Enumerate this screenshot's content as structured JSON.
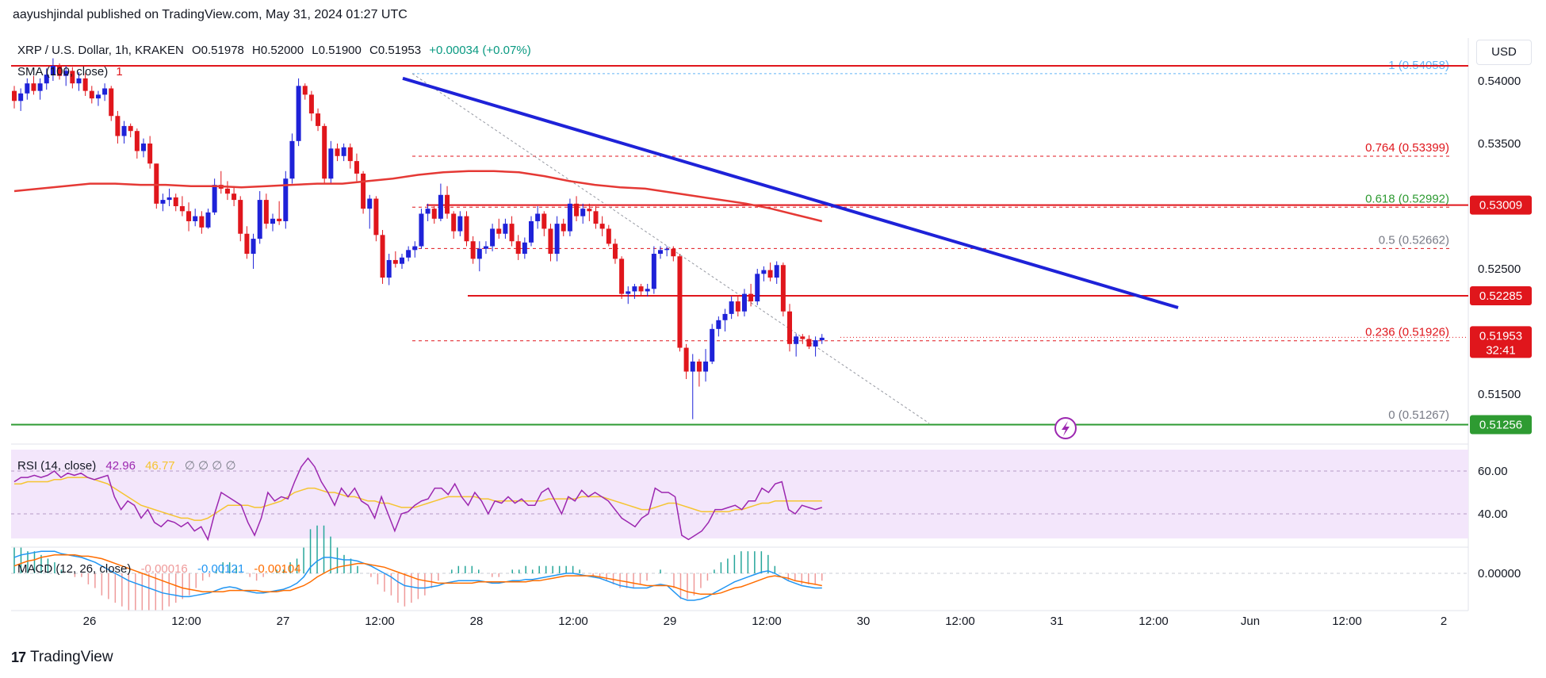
{
  "publisher": "aayushjindal published on TradingView.com, May 31, 2024 01:27 UTC",
  "brand": "TradingView",
  "currency": "USD",
  "header": {
    "symbol": "XRP / U.S. Dollar, 1h, KRAKEN",
    "open": "O0.51978",
    "high": "H0.52000",
    "low": "L0.51900",
    "close": "C0.51953",
    "change": "+0.00034 (+0.07%)",
    "sma_label": "SMA (100, close)",
    "sma_value": "1"
  },
  "colors": {
    "up": "#1e22d8",
    "down": "#e0161c",
    "sma": "#e53935",
    "trendline": "#1e22d8",
    "resistance": "#e0161c",
    "support": "#2e9b32",
    "rsi": "#9c27b0",
    "rsi_ma": "#f5c431",
    "macd": "#2196f3",
    "signal": "#ff6d00"
  },
  "price_axis": {
    "ticks": [
      "0.54000",
      "0.53500",
      "0.52500",
      "0.51500"
    ],
    "last_price": "0.51953",
    "countdown": "32:41",
    "level_labels": [
      "0.53009",
      "0.52285",
      "0.51256"
    ]
  },
  "fib": [
    {
      "ratio": "1",
      "value": "(0.54058)",
      "price": 0.54058
    },
    {
      "ratio": "0.764",
      "value": "(0.53399)",
      "price": 0.53399
    },
    {
      "ratio": "0.618",
      "value": "(0.52992)",
      "price": 0.52992
    },
    {
      "ratio": "0.5",
      "value": "(0.52662)",
      "price": 0.52662
    },
    {
      "ratio": "0.236",
      "value": "(0.51926)",
      "price": 0.51926
    },
    {
      "ratio": "0",
      "value": "(0.51267)",
      "price": 0.51267
    }
  ],
  "levels": {
    "resistance_top": 0.5412,
    "resistance_mid": 0.53009,
    "resistance_low": 0.52285,
    "support": 0.51256
  },
  "trendline": {
    "from": [
      "May 27 16:00",
      0.5402
    ],
    "to": [
      "May 31 06:00",
      0.5219
    ]
  },
  "x_axis": {
    "labels": [
      "26",
      "12:00",
      "27",
      "12:00",
      "28",
      "12:00",
      "29",
      "12:00",
      "30",
      "12:00",
      "31",
      "12:00",
      "Jun",
      "12:00",
      "2"
    ]
  },
  "rsi": {
    "label": "RSI (14, close)",
    "value1": "42.96",
    "value2": "46.77",
    "extra": "∅ ∅ ∅ ∅",
    "ticks": [
      "60.00",
      "40.00"
    ]
  },
  "macd": {
    "label": "MACD (12, 26, close)",
    "hist": "-0.00016",
    "macd": "-0.00121",
    "signal": "-0.00104",
    "ticks": [
      "0.00000"
    ]
  },
  "chart_data": {
    "type": "candlestick",
    "title": "XRP / U.S. Dollar, 1h, KRAKEN",
    "ylim": [
      0.5105,
      0.5425
    ],
    "candles": [
      [
        0.5392,
        0.5396,
        0.5378,
        0.5384
      ],
      [
        0.5384,
        0.5394,
        0.5376,
        0.539
      ],
      [
        0.539,
        0.5402,
        0.5385,
        0.5398
      ],
      [
        0.5398,
        0.5404,
        0.5389,
        0.5392
      ],
      [
        0.5392,
        0.5402,
        0.5385,
        0.5398
      ],
      [
        0.5398,
        0.541,
        0.5393,
        0.5405
      ],
      [
        0.5405,
        0.5418,
        0.54,
        0.5412
      ],
      [
        0.5412,
        0.5414,
        0.5401,
        0.5404
      ],
      [
        0.5404,
        0.5412,
        0.5396,
        0.5408
      ],
      [
        0.5408,
        0.5411,
        0.5394,
        0.5398
      ],
      [
        0.5398,
        0.5407,
        0.5392,
        0.5402
      ],
      [
        0.5402,
        0.5406,
        0.5388,
        0.5392
      ],
      [
        0.5392,
        0.5396,
        0.5382,
        0.5386
      ],
      [
        0.5386,
        0.5392,
        0.538,
        0.5389
      ],
      [
        0.5389,
        0.5398,
        0.5384,
        0.5394
      ],
      [
        0.5394,
        0.5396,
        0.5368,
        0.5372
      ],
      [
        0.5372,
        0.5376,
        0.535,
        0.5356
      ],
      [
        0.5356,
        0.5368,
        0.535,
        0.5364
      ],
      [
        0.5364,
        0.5366,
        0.5355,
        0.536
      ],
      [
        0.536,
        0.5362,
        0.5338,
        0.5344
      ],
      [
        0.5344,
        0.5354,
        0.5339,
        0.535
      ],
      [
        0.535,
        0.5356,
        0.533,
        0.5334
      ],
      [
        0.5334,
        0.5334,
        0.5298,
        0.5302
      ],
      [
        0.5302,
        0.531,
        0.5296,
        0.5305
      ],
      [
        0.5305,
        0.5314,
        0.53,
        0.5307
      ],
      [
        0.5307,
        0.531,
        0.5296,
        0.53
      ],
      [
        0.53,
        0.5308,
        0.5292,
        0.5296
      ],
      [
        0.5296,
        0.5303,
        0.528,
        0.5288
      ],
      [
        0.5288,
        0.5298,
        0.5284,
        0.5292
      ],
      [
        0.5292,
        0.5296,
        0.5278,
        0.5283
      ],
      [
        0.5283,
        0.5298,
        0.5282,
        0.5295
      ],
      [
        0.5295,
        0.5322,
        0.5293,
        0.5317
      ],
      [
        0.5317,
        0.5328,
        0.531,
        0.5314
      ],
      [
        0.5314,
        0.532,
        0.5305,
        0.531
      ],
      [
        0.531,
        0.5316,
        0.53,
        0.5305
      ],
      [
        0.5305,
        0.5308,
        0.5272,
        0.5278
      ],
      [
        0.5278,
        0.5284,
        0.5258,
        0.5262
      ],
      [
        0.5262,
        0.5278,
        0.525,
        0.5274
      ],
      [
        0.5274,
        0.5312,
        0.527,
        0.5305
      ],
      [
        0.5305,
        0.531,
        0.5282,
        0.5286
      ],
      [
        0.5286,
        0.5294,
        0.528,
        0.529
      ],
      [
        0.529,
        0.5304,
        0.5285,
        0.5288
      ],
      [
        0.5288,
        0.5328,
        0.5282,
        0.5322
      ],
      [
        0.5322,
        0.5358,
        0.5318,
        0.5352
      ],
      [
        0.5352,
        0.5402,
        0.5348,
        0.5396
      ],
      [
        0.5396,
        0.5398,
        0.5385,
        0.5389
      ],
      [
        0.5389,
        0.5392,
        0.5368,
        0.5374
      ],
      [
        0.5374,
        0.5378,
        0.536,
        0.5364
      ],
      [
        0.5364,
        0.5366,
        0.5318,
        0.5322
      ],
      [
        0.5322,
        0.5352,
        0.5318,
        0.5346
      ],
      [
        0.5346,
        0.535,
        0.5336,
        0.534
      ],
      [
        0.534,
        0.535,
        0.5336,
        0.5347
      ],
      [
        0.5347,
        0.535,
        0.533,
        0.5336
      ],
      [
        0.5336,
        0.5342,
        0.532,
        0.5326
      ],
      [
        0.5326,
        0.5328,
        0.5294,
        0.5298
      ],
      [
        0.5298,
        0.5309,
        0.5282,
        0.5306
      ],
      [
        0.5306,
        0.5308,
        0.5272,
        0.5277
      ],
      [
        0.5277,
        0.5281,
        0.5238,
        0.5243
      ],
      [
        0.5243,
        0.5262,
        0.5237,
        0.5257
      ],
      [
        0.5257,
        0.5264,
        0.5251,
        0.5254
      ],
      [
        0.5254,
        0.5262,
        0.525,
        0.5259
      ],
      [
        0.5259,
        0.5268,
        0.5256,
        0.5265
      ],
      [
        0.5265,
        0.5272,
        0.5259,
        0.5268
      ],
      [
        0.5268,
        0.5298,
        0.5266,
        0.5294
      ],
      [
        0.5294,
        0.5302,
        0.5288,
        0.5298
      ],
      [
        0.5298,
        0.53,
        0.5286,
        0.529
      ],
      [
        0.529,
        0.5318,
        0.5288,
        0.5309
      ],
      [
        0.5309,
        0.5316,
        0.529,
        0.5294
      ],
      [
        0.5294,
        0.5296,
        0.5274,
        0.528
      ],
      [
        0.528,
        0.5296,
        0.5276,
        0.5292
      ],
      [
        0.5292,
        0.5296,
        0.5268,
        0.5272
      ],
      [
        0.5272,
        0.5276,
        0.5254,
        0.5258
      ],
      [
        0.5258,
        0.5272,
        0.5248,
        0.5266
      ],
      [
        0.5266,
        0.5272,
        0.5262,
        0.5268
      ],
      [
        0.5268,
        0.5286,
        0.5264,
        0.5282
      ],
      [
        0.5282,
        0.529,
        0.5274,
        0.5278
      ],
      [
        0.5278,
        0.529,
        0.5274,
        0.5286
      ],
      [
        0.5286,
        0.5292,
        0.5268,
        0.5272
      ],
      [
        0.5272,
        0.5277,
        0.5257,
        0.5262
      ],
      [
        0.5262,
        0.5275,
        0.5258,
        0.5271
      ],
      [
        0.5271,
        0.5292,
        0.5268,
        0.5288
      ],
      [
        0.5288,
        0.53,
        0.5282,
        0.5294
      ],
      [
        0.5294,
        0.5296,
        0.5276,
        0.5282
      ],
      [
        0.5282,
        0.5286,
        0.5256,
        0.5262
      ],
      [
        0.5262,
        0.5292,
        0.5256,
        0.5286
      ],
      [
        0.5286,
        0.529,
        0.5276,
        0.528
      ],
      [
        0.528,
        0.5306,
        0.5276,
        0.5302
      ],
      [
        0.5302,
        0.5308,
        0.5288,
        0.5292
      ],
      [
        0.5292,
        0.5302,
        0.5286,
        0.5298
      ],
      [
        0.5298,
        0.5302,
        0.5288,
        0.5296
      ],
      [
        0.5296,
        0.53,
        0.5282,
        0.5286
      ],
      [
        0.5286,
        0.5292,
        0.5276,
        0.5282
      ],
      [
        0.5282,
        0.5285,
        0.5268,
        0.527
      ],
      [
        0.527,
        0.5274,
        0.5254,
        0.5258
      ],
      [
        0.5258,
        0.526,
        0.5226,
        0.523
      ],
      [
        0.523,
        0.5236,
        0.5222,
        0.5232
      ],
      [
        0.5232,
        0.5238,
        0.5226,
        0.5236
      ],
      [
        0.5236,
        0.5238,
        0.5229,
        0.5232
      ],
      [
        0.5232,
        0.5238,
        0.5228,
        0.5234
      ],
      [
        0.5234,
        0.5268,
        0.523,
        0.5262
      ],
      [
        0.5262,
        0.5268,
        0.5258,
        0.5265
      ],
      [
        0.5265,
        0.5268,
        0.526,
        0.5266
      ],
      [
        0.5266,
        0.5268,
        0.5256,
        0.526
      ],
      [
        0.526,
        0.5262,
        0.5184,
        0.5187
      ],
      [
        0.5187,
        0.519,
        0.5162,
        0.5168
      ],
      [
        0.5168,
        0.5182,
        0.513,
        0.5176
      ],
      [
        0.5176,
        0.5178,
        0.5156,
        0.5168
      ],
      [
        0.5168,
        0.5186,
        0.516,
        0.5176
      ],
      [
        0.5176,
        0.5206,
        0.5174,
        0.5202
      ],
      [
        0.5202,
        0.5212,
        0.5196,
        0.5209
      ],
      [
        0.5209,
        0.5218,
        0.52,
        0.5214
      ],
      [
        0.5214,
        0.5228,
        0.521,
        0.5224
      ],
      [
        0.5224,
        0.5228,
        0.5212,
        0.5216
      ],
      [
        0.5216,
        0.5234,
        0.5212,
        0.523
      ],
      [
        0.523,
        0.5238,
        0.522,
        0.5224
      ],
      [
        0.5224,
        0.525,
        0.5221,
        0.5246
      ],
      [
        0.5246,
        0.5252,
        0.524,
        0.5249
      ],
      [
        0.5249,
        0.5255,
        0.524,
        0.5243
      ],
      [
        0.5243,
        0.5256,
        0.5238,
        0.5253
      ],
      [
        0.5253,
        0.5255,
        0.5212,
        0.5216
      ],
      [
        0.5216,
        0.5222,
        0.5184,
        0.519
      ],
      [
        0.519,
        0.5198,
        0.518,
        0.5196
      ],
      [
        0.5196,
        0.5198,
        0.519,
        0.5194
      ],
      [
        0.5194,
        0.5197,
        0.5186,
        0.5188
      ],
      [
        0.5188,
        0.5196,
        0.518,
        0.5193
      ],
      [
        0.5193,
        0.5198,
        0.519,
        0.5195
      ]
    ],
    "sma100": [
      0.5312,
      0.5314,
      0.5316,
      0.5318,
      0.5318,
      0.5317,
      0.5317,
      0.5316,
      0.5316,
      0.5315,
      0.5316,
      0.5317,
      0.5318,
      0.5318,
      0.532,
      0.5322,
      0.5325,
      0.5327,
      0.5328,
      0.5328,
      0.5327,
      0.5324,
      0.532,
      0.5317,
      0.5315,
      0.5314,
      0.5311,
      0.5308,
      0.5305,
      0.5302,
      0.5298,
      0.5293,
      0.5288
    ],
    "rsi": [
      55,
      57,
      57,
      58,
      57,
      58,
      60,
      57,
      59,
      58,
      59,
      57,
      56,
      57,
      58,
      48,
      42,
      46,
      44,
      38,
      42,
      36,
      34,
      37,
      36,
      34,
      36,
      32,
      34,
      28,
      40,
      50,
      48,
      46,
      44,
      36,
      30,
      38,
      50,
      46,
      48,
      47,
      55,
      62,
      66,
      62,
      55,
      50,
      44,
      52,
      48,
      52,
      46,
      44,
      38,
      48,
      40,
      32,
      40,
      41,
      44,
      46,
      47,
      52,
      52,
      49,
      54,
      48,
      44,
      50,
      46,
      40,
      46,
      45,
      48,
      45,
      47,
      44,
      44,
      50,
      52,
      46,
      40,
      48,
      46,
      51,
      48,
      50,
      48,
      46,
      42,
      38,
      36,
      34,
      38,
      40,
      52,
      50,
      50,
      48,
      30,
      28,
      30,
      32,
      36,
      42,
      42,
      43,
      44,
      42,
      46,
      46,
      52,
      50,
      54,
      55,
      42,
      40,
      44,
      43,
      42,
      43
    ],
    "rsi_ma": [
      54,
      54,
      55,
      55,
      55,
      55,
      56,
      56,
      57,
      57,
      57,
      57,
      56,
      55,
      54,
      52,
      50,
      48,
      46,
      44,
      43,
      42,
      41,
      40,
      39,
      38,
      38,
      37,
      37,
      38,
      40,
      42,
      44,
      44,
      44,
      44,
      43,
      43,
      44,
      45,
      46,
      48,
      50,
      51,
      52,
      52,
      51,
      50,
      50,
      49,
      48,
      48,
      47,
      46,
      46,
      45,
      45,
      44,
      43,
      43,
      43,
      44,
      45,
      46,
      47,
      48,
      48,
      48,
      48,
      48,
      47,
      47,
      46,
      46,
      46,
      46,
      46,
      46,
      46,
      46,
      47,
      47,
      47,
      47,
      47,
      48,
      48,
      48,
      48,
      47,
      46,
      45,
      44,
      43,
      42,
      42,
      43,
      44,
      45,
      45,
      44,
      43,
      42,
      41,
      41,
      41,
      41,
      41,
      42,
      42,
      43,
      44,
      45,
      45,
      46,
      46,
      46,
      46,
      46,
      46,
      46,
      46
    ],
    "macd": [
      0.0013,
      0.0015,
      0.0016,
      0.0017,
      0.0018,
      0.0018,
      0.0018,
      0.0016,
      0.0015,
      0.0014,
      0.0013,
      0.0011,
      0.0009,
      0.0006,
      0.0003,
      0.0,
      -0.0003,
      -0.0006,
      -0.0008,
      -0.001,
      -0.0012,
      -0.0014,
      -0.0016,
      -0.0017,
      -0.0018,
      -0.0019,
      -0.0019,
      -0.0018,
      -0.0017,
      -0.0016,
      -0.0014,
      -0.0012,
      -0.0011,
      -0.0012,
      -0.0014,
      -0.0015,
      -0.0016,
      -0.0016,
      -0.0015,
      -0.0014,
      -0.0013,
      -0.0011,
      -0.0008,
      -0.0003,
      0.0005,
      0.001,
      0.0013,
      0.0013,
      0.0012,
      0.0011,
      0.0011,
      0.001,
      0.0008,
      0.0006,
      0.0003,
      0.0,
      -0.0003,
      -0.0007,
      -0.001,
      -0.0011,
      -0.0012,
      -0.0012,
      -0.0011,
      -0.001,
      -0.0008,
      -0.0007,
      -0.0006,
      -0.0006,
      -0.0006,
      -0.0006,
      -0.0007,
      -0.0008,
      -0.0008,
      -0.0007,
      -0.0006,
      -0.0006,
      -0.0005,
      -0.0005,
      -0.0004,
      -0.0003,
      -0.0002,
      -0.0001,
      0.0,
      0.0,
      -0.0001,
      -0.0002,
      -0.0003,
      -0.0004,
      -0.0006,
      -0.0008,
      -0.001,
      -0.0011,
      -0.0012,
      -0.0012,
      -0.0012,
      -0.001,
      -0.0009,
      -0.001,
      -0.0015,
      -0.002,
      -0.0022,
      -0.0022,
      -0.0021,
      -0.0019,
      -0.0016,
      -0.0013,
      -0.001,
      -0.0007,
      -0.0005,
      -0.0003,
      -0.0001,
      0.0001,
      0.0002,
      0.0,
      -0.0003,
      -0.0006,
      -0.0008,
      -0.001,
      -0.0011,
      -0.0012,
      -0.0012
    ],
    "macd_signal": [
      0.0006,
      0.0008,
      0.001,
      0.0011,
      0.0013,
      0.0014,
      0.0015,
      0.0015,
      0.0015,
      0.0015,
      0.0014,
      0.0014,
      0.0013,
      0.0012,
      0.001,
      0.0008,
      0.0006,
      0.0004,
      0.0002,
      0.0,
      -0.0002,
      -0.0004,
      -0.0006,
      -0.0008,
      -0.001,
      -0.0012,
      -0.0013,
      -0.0014,
      -0.0015,
      -0.0015,
      -0.0015,
      -0.0015,
      -0.0014,
      -0.0014,
      -0.0014,
      -0.0014,
      -0.0014,
      -0.0015,
      -0.0015,
      -0.0015,
      -0.0014,
      -0.0014,
      -0.0012,
      -0.001,
      -0.0007,
      -0.0003,
      0.0,
      0.0003,
      0.0005,
      0.0006,
      0.0007,
      0.0008,
      0.0008,
      0.0007,
      0.0006,
      0.0005,
      0.0003,
      0.0001,
      -0.0001,
      -0.0003,
      -0.0005,
      -0.0006,
      -0.0007,
      -0.0008,
      -0.0008,
      -0.0008,
      -0.0008,
      -0.0008,
      -0.0008,
      -0.0007,
      -0.0007,
      -0.0007,
      -0.0007,
      -0.0007,
      -0.0007,
      -0.0007,
      -0.0007,
      -0.0006,
      -0.0006,
      -0.0005,
      -0.0004,
      -0.0003,
      -0.0002,
      -0.0002,
      -0.0002,
      -0.0002,
      -0.0002,
      -0.0003,
      -0.0004,
      -0.0005,
      -0.0006,
      -0.0007,
      -0.0008,
      -0.0009,
      -0.001,
      -0.001,
      -0.001,
      -0.001,
      -0.0011,
      -0.0013,
      -0.0015,
      -0.0016,
      -0.0017,
      -0.0017,
      -0.0017,
      -0.0016,
      -0.0014,
      -0.0012,
      -0.0011,
      -0.0009,
      -0.0007,
      -0.0005,
      -0.0003,
      -0.0002,
      -0.0003,
      -0.0004,
      -0.0006,
      -0.0007,
      -0.0008,
      -0.0009,
      -0.001
    ]
  }
}
